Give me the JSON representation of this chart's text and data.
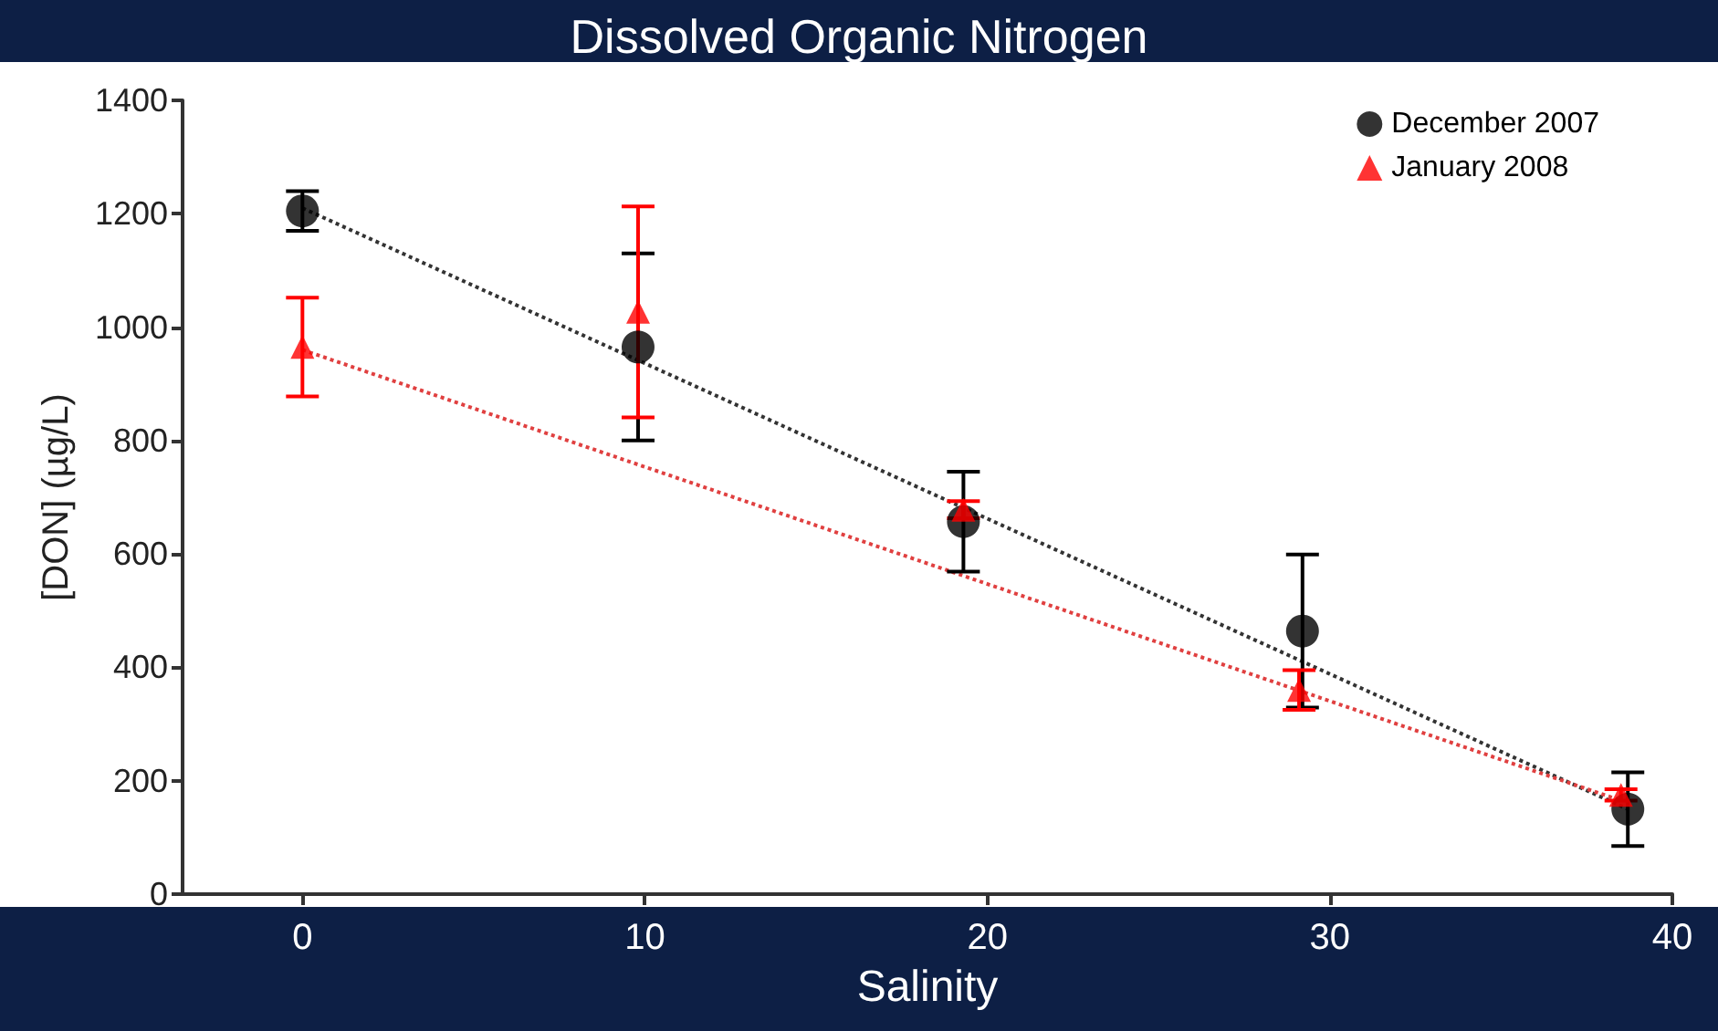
{
  "chart_data": {
    "type": "scatter",
    "title": "Dissolved Organic Nitrogen",
    "xlabel": "Salinity",
    "ylabel": "[DON] (µg/L)",
    "xlim": [
      -3.5,
      40
    ],
    "xticks": [
      0,
      10,
      20,
      30,
      40
    ],
    "ylim": [
      0,
      1400
    ],
    "yticks": [
      0,
      200,
      400,
      600,
      800,
      1000,
      1200,
      1400
    ],
    "grid": false,
    "legend": "top right",
    "series": [
      {
        "name": "December 2007",
        "color": "#000000",
        "marker": "circle",
        "x": [
          0,
          9.8,
          19.3,
          29.2,
          38.7
        ],
        "values": [
          1205,
          965,
          657,
          464,
          150
        ],
        "errors": [
          35,
          165,
          88,
          135,
          65
        ]
      },
      {
        "name": "January 2008",
        "color": "#ff0000",
        "marker": "triangle",
        "x": [
          0,
          9.8,
          19.3,
          29.1,
          38.5
        ],
        "values": [
          965,
          1027,
          678,
          360,
          175
        ],
        "errors": [
          87,
          186,
          15,
          35,
          10
        ]
      },
      {
        "type": "line",
        "color": "#333333",
        "line_style": "dotted",
        "marker": "none",
        "x": [
          0,
          38.7
        ],
        "values": [
          1210,
          150
        ]
      },
      {
        "type": "line",
        "color": "#e04040",
        "line_style": "dotted",
        "marker": "none",
        "x": [
          0,
          38.5
        ],
        "values": [
          960,
          165
        ]
      }
    ]
  }
}
